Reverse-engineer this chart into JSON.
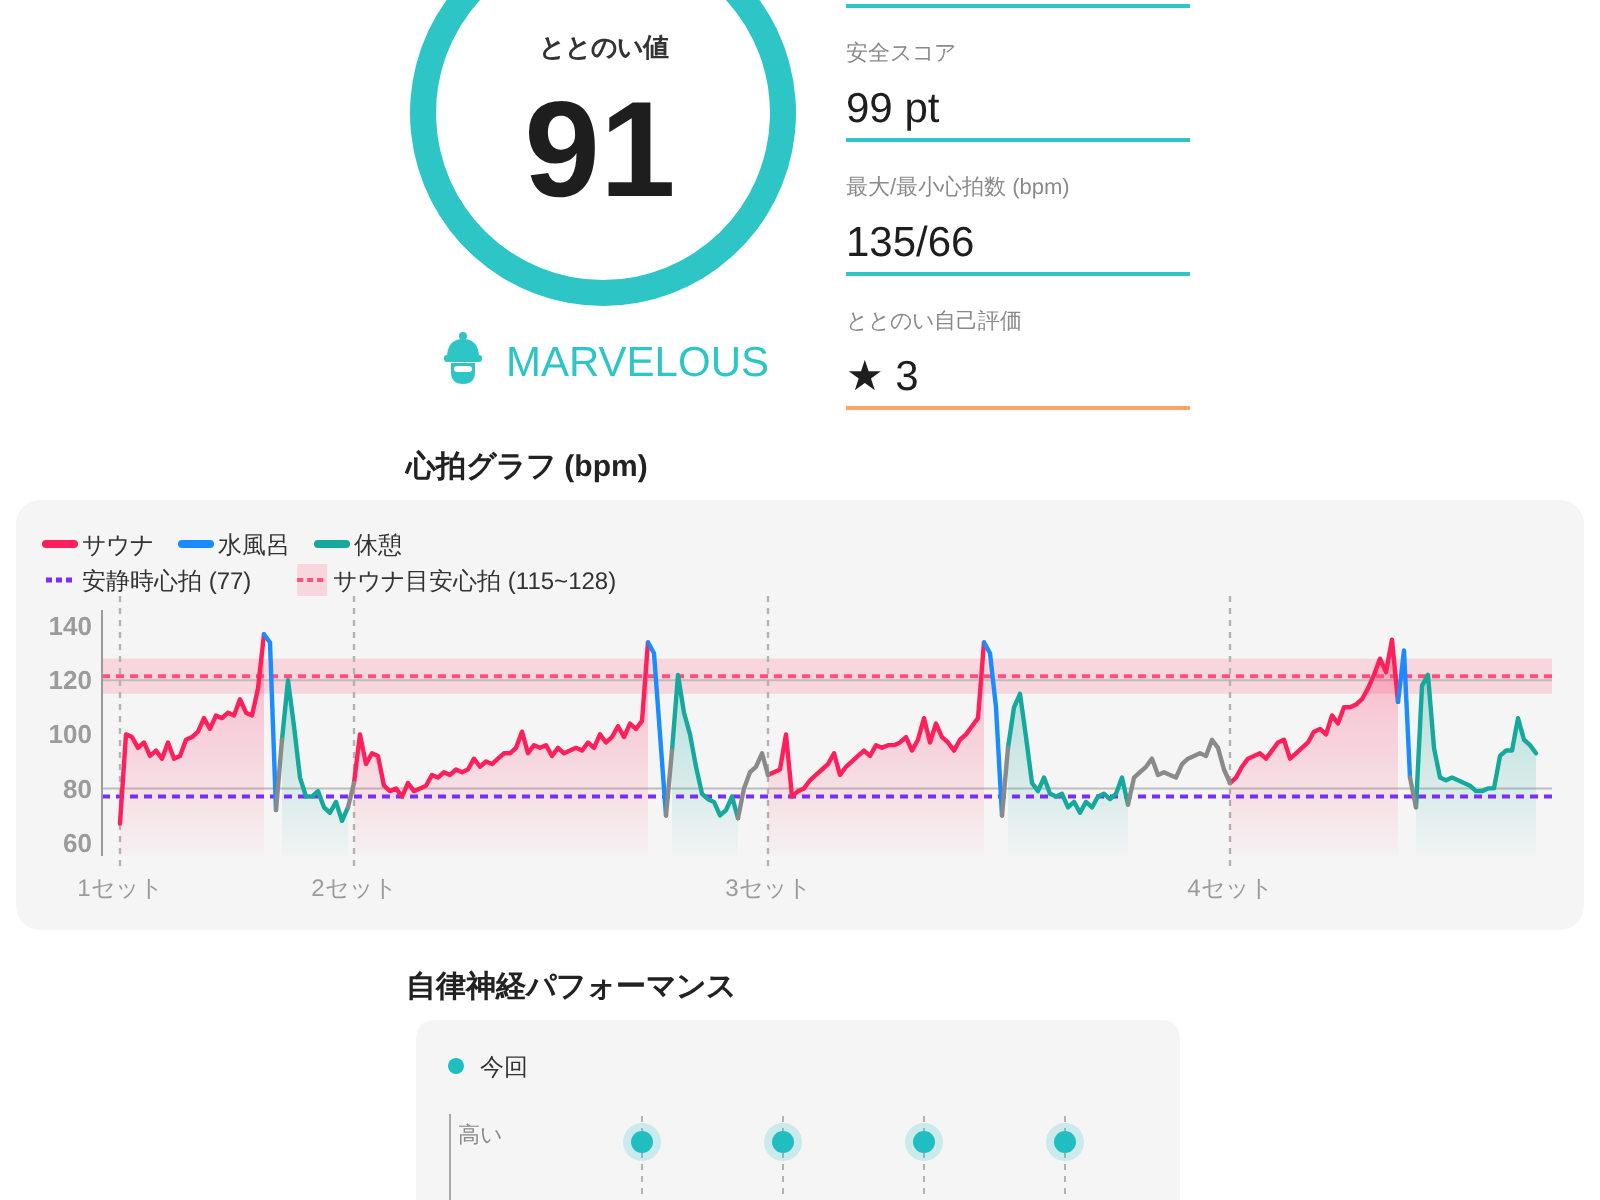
{
  "chart_data": [
    {
      "type": "other",
      "title": "ととのい値",
      "annotations": [
        "91",
        "MARVELOUS"
      ]
    },
    {
      "type": "other",
      "annotations": [
        "安全スコア",
        "99 pt",
        "最大/最小心拍数 (bpm)",
        "135/66",
        "ととのい自己評価",
        "★ 3"
      ]
    },
    {
      "type": "line",
      "title": "心拍グラフ (bpm)",
      "legend": "top left",
      "grid": "x",
      "ylim": [
        55,
        146
      ],
      "yticks": [
        60,
        80,
        100,
        120,
        140
      ],
      "categories": [
        "1セット",
        null,
        null,
        null,
        null,
        null,
        null,
        null,
        null,
        null,
        null,
        null,
        null,
        null,
        null,
        null,
        null,
        null,
        null,
        null,
        null,
        null,
        null,
        null,
        null,
        null,
        null,
        null,
        null,
        null,
        null,
        null,
        null,
        null,
        null,
        null,
        null,
        null,
        null,
        "2セット",
        null,
        null,
        null,
        null,
        null,
        null,
        null,
        null,
        null,
        null,
        null,
        null,
        null,
        null,
        null,
        null,
        null,
        null,
        null,
        null,
        null,
        null,
        null,
        null,
        null,
        null,
        null,
        null,
        null,
        null,
        null,
        null,
        null,
        null,
        null,
        null,
        null,
        null,
        null,
        null,
        null,
        null,
        null,
        null,
        null,
        null,
        null,
        null,
        null,
        null,
        null,
        null,
        null,
        null,
        null,
        null,
        null,
        null,
        null,
        null,
        null,
        null,
        null,
        null,
        null,
        null,
        null,
        null,
        "3セット",
        null,
        null,
        null,
        null,
        null,
        null,
        null,
        null,
        null,
        null,
        null,
        null,
        null,
        null,
        null,
        null,
        null,
        null,
        null,
        null,
        null,
        null,
        null,
        null,
        null,
        null,
        null,
        null,
        null,
        null,
        null,
        null,
        null,
        null,
        null,
        null,
        null,
        null,
        null,
        null,
        null,
        null,
        null,
        null,
        null,
        null,
        null,
        null,
        null,
        null,
        null,
        null,
        null,
        null,
        null,
        null,
        null,
        null,
        null,
        null,
        null,
        null,
        null,
        null,
        null,
        null,
        null,
        null,
        null,
        null,
        null,
        null,
        null,
        null,
        null,
        null,
        "4セット",
        null,
        null,
        null,
        null,
        null,
        null,
        null,
        null,
        null,
        null,
        null,
        null,
        null,
        null,
        null,
        null,
        null,
        null,
        null,
        null,
        null,
        null,
        null,
        null,
        null,
        null,
        null,
        null,
        null,
        null,
        null,
        null,
        null,
        null,
        null,
        null,
        null,
        null,
        null,
        null,
        null,
        null,
        null,
        null,
        null,
        null,
        null,
        null,
        null,
        null,
        null
      ],
      "series": [
        {
          "name": "サウナ",
          "type": "area",
          "color": "#ff1f5a",
          "values": [
            67,
            100,
            99,
            95,
            97,
            92,
            94,
            91,
            97,
            91,
            92,
            98,
            99,
            101,
            106,
            102,
            107,
            106,
            108,
            107,
            113,
            108,
            107,
            117,
            137,
            null,
            null,
            null,
            null,
            null,
            null,
            null,
            null,
            null,
            null,
            null,
            null,
            null,
            null,
            82,
            100,
            89,
            93,
            92,
            81,
            79,
            80,
            77,
            82,
            79,
            80,
            81,
            85,
            84,
            86,
            85,
            87,
            86,
            87,
            91,
            88,
            90,
            89,
            91,
            93,
            93,
            95,
            101,
            93,
            96,
            95,
            96,
            92,
            95,
            93,
            94,
            95,
            94,
            97,
            95,
            100,
            97,
            99,
            103,
            99,
            104,
            102,
            105,
            134,
            null,
            null,
            null,
            null,
            null,
            null,
            null,
            null,
            null,
            null,
            null,
            null,
            null,
            null,
            null,
            null,
            null,
            null,
            null,
            85,
            86,
            87,
            100,
            77,
            79,
            80,
            83,
            85,
            87,
            89,
            93,
            85,
            88,
            90,
            92,
            94,
            92,
            96,
            95,
            96,
            96,
            97,
            99,
            94,
            98,
            106,
            97,
            104,
            99,
            97,
            94,
            98,
            100,
            103,
            106,
            134,
            null,
            null,
            null,
            null,
            null,
            null,
            null,
            null,
            null,
            null,
            null,
            null,
            null,
            null,
            null,
            null,
            null,
            null,
            null,
            null,
            null,
            null,
            null,
            null,
            null,
            null,
            null,
            null,
            null,
            null,
            null,
            null,
            null,
            null,
            null,
            null,
            null,
            null,
            null,
            null,
            82,
            84,
            88,
            91,
            92,
            93,
            91,
            94,
            97,
            98,
            91,
            93,
            95,
            97,
            101,
            102,
            100,
            107,
            104,
            110,
            110,
            111,
            113,
            117,
            122,
            128,
            123,
            135,
            112,
            null,
            null,
            null,
            null,
            null,
            null,
            null,
            null,
            null,
            null,
            null,
            null,
            null,
            null,
            null,
            null,
            null,
            null,
            null,
            null,
            null,
            null,
            null
          ]
        },
        {
          "name": "水風呂",
          "type": "line",
          "color": "#1a8cff",
          "values": [
            null,
            null,
            null,
            null,
            null,
            null,
            null,
            null,
            null,
            null,
            null,
            null,
            null,
            null,
            null,
            null,
            null,
            null,
            null,
            null,
            null,
            null,
            null,
            null,
            137,
            134,
            72,
            null,
            null,
            null,
            null,
            null,
            null,
            null,
            null,
            null,
            null,
            null,
            null,
            null,
            null,
            null,
            null,
            null,
            null,
            null,
            null,
            null,
            null,
            null,
            null,
            null,
            null,
            null,
            null,
            null,
            null,
            null,
            null,
            null,
            null,
            null,
            null,
            null,
            null,
            null,
            null,
            null,
            null,
            null,
            null,
            null,
            null,
            null,
            null,
            null,
            null,
            null,
            null,
            null,
            null,
            null,
            null,
            null,
            null,
            null,
            null,
            null,
            134,
            130,
            100,
            70,
            null,
            null,
            null,
            null,
            null,
            null,
            null,
            null,
            null,
            null,
            null,
            null,
            null,
            null,
            null,
            null,
            null,
            null,
            null,
            null,
            null,
            null,
            null,
            null,
            null,
            null,
            null,
            null,
            null,
            null,
            null,
            null,
            null,
            null,
            null,
            null,
            null,
            null,
            null,
            null,
            null,
            null,
            null,
            null,
            null,
            null,
            null,
            null,
            null,
            null,
            null,
            null,
            134,
            130,
            110,
            70,
            null,
            null,
            null,
            null,
            null,
            null,
            null,
            null,
            null,
            null,
            null,
            null,
            null,
            null,
            null,
            null,
            null,
            null,
            null,
            null,
            null,
            null,
            null,
            null,
            null,
            null,
            null,
            null,
            null,
            null,
            null,
            null,
            null,
            null,
            null,
            null,
            null,
            null,
            null,
            null,
            null,
            null,
            null,
            null,
            null,
            null,
            null,
            null,
            null,
            null,
            null,
            null,
            null,
            null,
            null,
            null,
            null,
            null,
            null,
            null,
            null,
            null,
            null,
            null,
            null,
            112,
            131,
            84,
            null,
            null,
            null,
            null,
            null,
            null,
            null,
            null,
            null,
            null,
            null,
            null,
            null,
            null,
            null,
            null,
            null,
            null,
            null,
            null,
            null
          ]
        },
        {
          "name": "休憩",
          "type": "area",
          "color": "#15a89c",
          "values": [
            null,
            null,
            null,
            null,
            null,
            null,
            null,
            null,
            null,
            null,
            null,
            null,
            null,
            null,
            null,
            null,
            null,
            null,
            null,
            null,
            null,
            null,
            null,
            null,
            null,
            null,
            null,
            98,
            120,
            103,
            84,
            77,
            77,
            79,
            73,
            71,
            75,
            68,
            73,
            null,
            null,
            null,
            null,
            null,
            null,
            null,
            null,
            null,
            null,
            null,
            null,
            null,
            null,
            null,
            null,
            null,
            null,
            null,
            null,
            null,
            null,
            null,
            null,
            null,
            null,
            null,
            null,
            null,
            null,
            null,
            null,
            null,
            null,
            null,
            null,
            null,
            null,
            null,
            null,
            null,
            null,
            null,
            null,
            null,
            null,
            null,
            null,
            null,
            null,
            null,
            null,
            null,
            94,
            122,
            108,
            100,
            88,
            78,
            76,
            75,
            70,
            72,
            77,
            69,
            null,
            null,
            null,
            null,
            null,
            null,
            null,
            null,
            null,
            null,
            null,
            null,
            null,
            null,
            null,
            null,
            null,
            null,
            null,
            null,
            null,
            null,
            null,
            null,
            null,
            null,
            null,
            null,
            null,
            null,
            null,
            null,
            null,
            null,
            null,
            null,
            null,
            null,
            null,
            null,
            null,
            null,
            null,
            null,
            95,
            110,
            115,
            99,
            82,
            79,
            84,
            78,
            77,
            78,
            73,
            75,
            71,
            75,
            73,
            77,
            78,
            76,
            78,
            84,
            74,
            null,
            null,
            null,
            null,
            null,
            null,
            null,
            null,
            null,
            null,
            null,
            null,
            null,
            null,
            null,
            null,
            null,
            null,
            null,
            null,
            null,
            null,
            null,
            null,
            null,
            null,
            null,
            null,
            null,
            null,
            null,
            null,
            null,
            null,
            null,
            null,
            null,
            null,
            null,
            null,
            null,
            null,
            null,
            null,
            null,
            null,
            null,
            73,
            118,
            122,
            95,
            84,
            83,
            84,
            83,
            82,
            81,
            79,
            79,
            80,
            80,
            92,
            94,
            94,
            106,
            98,
            96,
            93
          ]
        },
        {
          "type": "line",
          "color": "#8a8a8a",
          "values": [
            null,
            null,
            null,
            null,
            null,
            null,
            null,
            null,
            null,
            null,
            null,
            null,
            null,
            null,
            null,
            null,
            null,
            null,
            null,
            null,
            null,
            null,
            null,
            null,
            null,
            null,
            72,
            98,
            null,
            null,
            null,
            null,
            null,
            null,
            null,
            null,
            null,
            null,
            73,
            82,
            null,
            null,
            null,
            null,
            null,
            null,
            null,
            null,
            null,
            null,
            null,
            null,
            null,
            null,
            null,
            null,
            null,
            null,
            null,
            null,
            null,
            null,
            null,
            null,
            null,
            null,
            null,
            null,
            null,
            null,
            null,
            null,
            null,
            null,
            null,
            null,
            null,
            null,
            null,
            null,
            null,
            null,
            null,
            null,
            null,
            null,
            null,
            null,
            null,
            null,
            null,
            70,
            94,
            null,
            null,
            null,
            null,
            null,
            null,
            null,
            null,
            null,
            null,
            69,
            80,
            86,
            88,
            93,
            85,
            null,
            null,
            null,
            null,
            null,
            null,
            null,
            null,
            null,
            null,
            null,
            null,
            null,
            null,
            null,
            null,
            null,
            null,
            null,
            null,
            null,
            null,
            null,
            null,
            null,
            null,
            null,
            null,
            null,
            null,
            null,
            null,
            null,
            null,
            null,
            null,
            null,
            null,
            70,
            95,
            null,
            null,
            null,
            null,
            null,
            null,
            null,
            null,
            null,
            null,
            null,
            null,
            null,
            null,
            null,
            null,
            null,
            null,
            null,
            74,
            84,
            86,
            88,
            91,
            85,
            86,
            85,
            84,
            89,
            91,
            92,
            93,
            92,
            98,
            95,
            87,
            82,
            null,
            null,
            null,
            null,
            null,
            null,
            null,
            null,
            null,
            null,
            null,
            null,
            null,
            null,
            null,
            null,
            null,
            null,
            null,
            null,
            null,
            null,
            null,
            null,
            null,
            null,
            null,
            null,
            null,
            84,
            73,
            null,
            null,
            null,
            null,
            null,
            null,
            null,
            null,
            null,
            null,
            null,
            null,
            null,
            null,
            null,
            null,
            null,
            null,
            null,
            null
          ]
        }
      ],
      "ref_lines": [
        {
          "axis": "y",
          "value": 80,
          "color": "#bdbdbd"
        },
        {
          "axis": "y",
          "value": 120,
          "color": "#bdbdbd"
        },
        {
          "axis": "y",
          "value": 77,
          "label": "安静時心拍 (77)",
          "line_style": "dashed",
          "color": "#7b2cf6"
        },
        {
          "axis": "y",
          "value": 121.5,
          "line_style": "dashed",
          "color": "#ff4f7c"
        }
      ],
      "bands": [
        {
          "axis": "y",
          "from": 115,
          "to": 128,
          "label": "サウナ目安心拍 (115~128)",
          "color": "#f8d6de"
        }
      ]
    },
    {
      "type": "other",
      "title": "自律神経パフォーマンス",
      "annotations": [
        "今回",
        "高い"
      ]
    }
  ]
}
